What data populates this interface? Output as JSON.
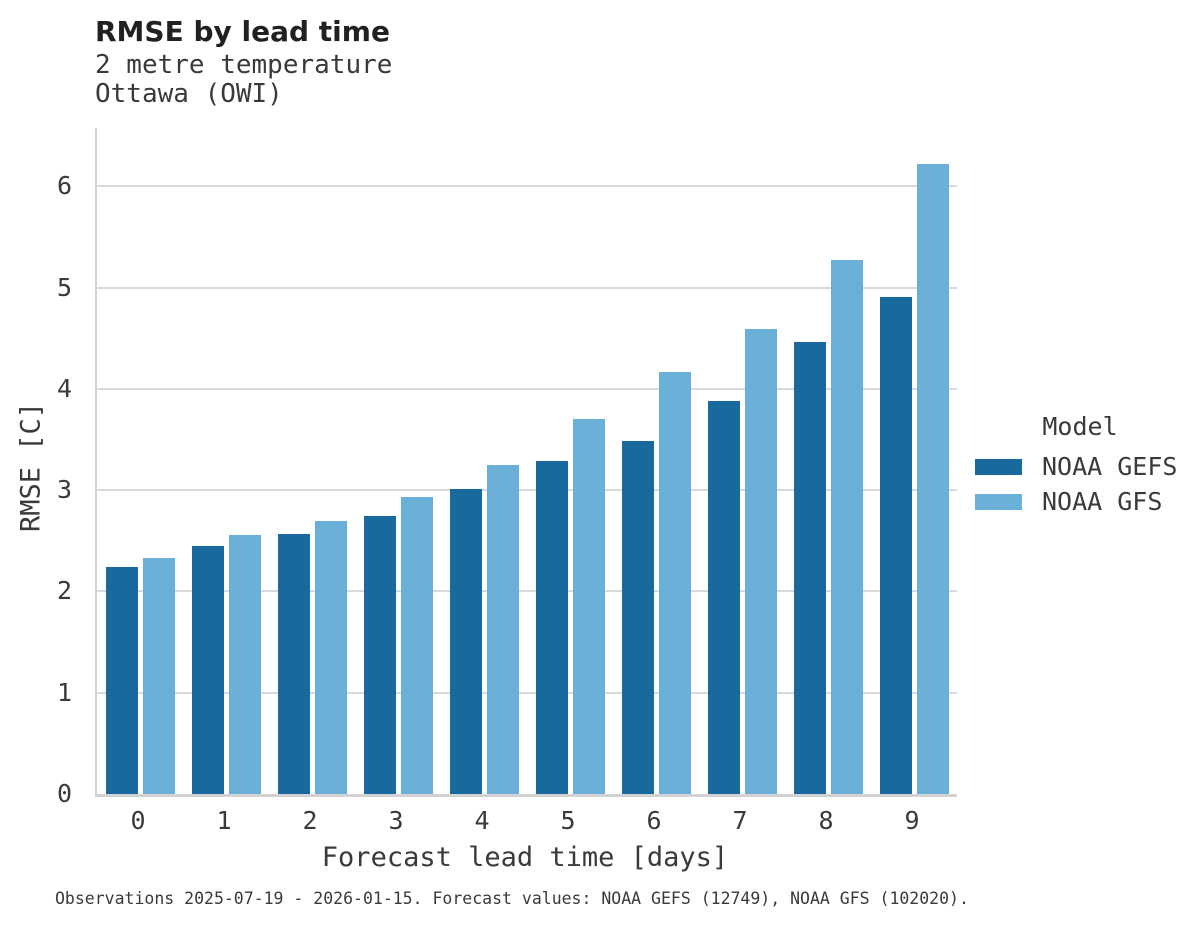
{
  "header": {
    "title": "RMSE by lead time",
    "subtitle_line1": "2 metre temperature",
    "subtitle_line2": "Ottawa (OWI)"
  },
  "legend": {
    "title": "Model",
    "items": [
      "NOAA GEFS",
      "NOAA GFS"
    ]
  },
  "footer": {
    "note": "Observations 2025-07-19 - 2026-01-15. Forecast values: NOAA GEFS (12749), NOAA GFS (102020)."
  },
  "colors": {
    "series_dark": "#17699e",
    "series_light": "#69afd8",
    "gridline": "#d9d9d9",
    "spine": "#d2d2d2",
    "text": "#3a3a3a",
    "title_text": "#212121"
  },
  "chart_data": {
    "type": "bar",
    "title": "RMSE by lead time",
    "subtitle": [
      "2 metre temperature",
      "Ottawa (OWI)"
    ],
    "categories": [
      "0",
      "1",
      "2",
      "3",
      "4",
      "5",
      "6",
      "7",
      "8",
      "9"
    ],
    "series": [
      {
        "name": "NOAA GEFS",
        "color": "#17699e",
        "values": [
          2.24,
          2.45,
          2.57,
          2.74,
          3.01,
          3.29,
          3.49,
          3.88,
          4.46,
          4.91
        ]
      },
      {
        "name": "NOAA GFS",
        "color": "#69afd8",
        "values": [
          2.33,
          2.56,
          2.7,
          2.93,
          3.25,
          3.7,
          4.17,
          4.59,
          5.27,
          6.22
        ]
      }
    ],
    "xlabel": "Forecast lead time [days]",
    "ylabel": "RMSE [C]",
    "ylim": [
      0,
      6.575
    ],
    "yticks": [
      0,
      1,
      2,
      3,
      4,
      5,
      6
    ],
    "grid": true,
    "legend_title": "Model",
    "legend_position": "right",
    "annotation": "Observations 2025-07-19 - 2026-01-15. Forecast values: NOAA GEFS (12749), NOAA GFS (102020)."
  }
}
